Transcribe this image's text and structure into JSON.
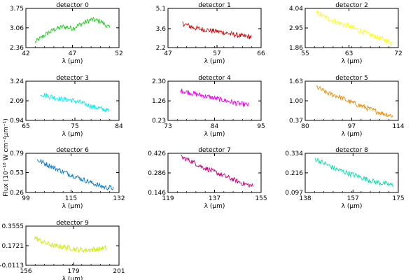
{
  "figure": {
    "ylabel": "Flux (10⁻¹⁸ W cm⁻²μm⁻¹)"
  },
  "chart_data": [
    {
      "type": "line",
      "title": "detector 0",
      "xlabel": "λ (μm)",
      "xlim": [
        42,
        52
      ],
      "ylim": [
        2.36,
        3.75
      ],
      "xticks": [
        "42",
        "47",
        "52"
      ],
      "yticks": [
        "2.36",
        "3.06",
        "3.75"
      ],
      "color": "#22cc22",
      "series": [
        {
          "x": [
            43,
            44,
            45,
            46,
            47,
            48,
            49,
            50,
            51
          ],
          "y": [
            2.55,
            2.8,
            3.0,
            3.1,
            3.05,
            3.2,
            3.35,
            3.3,
            3.05
          ]
        }
      ]
    },
    {
      "type": "line",
      "title": "detector 1",
      "xlabel": "λ (μm)",
      "xlim": [
        47,
        66
      ],
      "ylim": [
        2.2,
        5.1
      ],
      "xticks": [
        "47",
        "57",
        "66"
      ],
      "yticks": [
        "2.2",
        "3.6",
        "5.1"
      ],
      "color": "#dd0000",
      "series": [
        {
          "x": [
            50,
            52,
            54,
            56,
            58,
            60,
            62,
            64
          ],
          "y": [
            4.0,
            3.7,
            3.55,
            3.45,
            3.35,
            3.2,
            3.05,
            3.0
          ]
        }
      ]
    },
    {
      "type": "line",
      "title": "detector 2",
      "xlabel": "λ (μm)",
      "xlim": [
        55,
        72
      ],
      "ylim": [
        1.86,
        4.04
      ],
      "xticks": [
        "55",
        "63",
        "72"
      ],
      "yticks": [
        "1.86",
        "2.95",
        "4.04"
      ],
      "color": "#ffff00",
      "series": [
        {
          "x": [
            57,
            59,
            61,
            63,
            65,
            67,
            69,
            71
          ],
          "y": [
            3.8,
            3.5,
            3.25,
            3.05,
            2.8,
            2.55,
            2.35,
            2.1
          ]
        }
      ]
    },
    {
      "type": "line",
      "title": "detector 3",
      "xlabel": "λ (μm)",
      "xlim": [
        65,
        84
      ],
      "ylim": [
        0.94,
        3.24
      ],
      "xticks": [
        "65",
        "75",
        "84"
      ],
      "yticks": [
        "0.94",
        "2.09",
        "3.24"
      ],
      "color": "#00eeee",
      "series": [
        {
          "x": [
            68,
            70,
            72,
            74,
            76,
            78,
            80,
            82
          ],
          "y": [
            2.5,
            2.35,
            2.2,
            2.15,
            2.0,
            1.8,
            1.65,
            1.5
          ]
        }
      ]
    },
    {
      "type": "line",
      "title": "detector 4",
      "xlabel": "λ (μm)",
      "xlim": [
        73,
        95
      ],
      "ylim": [
        0.23,
        2.3
      ],
      "xticks": [
        "73",
        "84",
        "95"
      ],
      "yticks": [
        "0.23",
        "1.26",
        "2.30"
      ],
      "color": "#ee00ee",
      "series": [
        {
          "x": [
            76,
            78,
            80,
            82,
            84,
            86,
            88,
            90,
            92
          ],
          "y": [
            1.8,
            1.7,
            1.6,
            1.5,
            1.4,
            1.3,
            1.2,
            1.1,
            1.05
          ]
        }
      ]
    },
    {
      "type": "line",
      "title": "detector 5",
      "xlabel": "λ (μm)",
      "xlim": [
        80,
        114
      ],
      "ylim": [
        0.37,
        1.63
      ],
      "xticks": [
        "80",
        "97",
        "114"
      ],
      "yticks": [
        "0.37",
        "1.00",
        "1.63"
      ],
      "color": "#ee8800",
      "series": [
        {
          "x": [
            84,
            88,
            92,
            96,
            100,
            104,
            108,
            112
          ],
          "y": [
            1.45,
            1.25,
            1.15,
            0.98,
            0.85,
            0.72,
            0.6,
            0.52
          ]
        }
      ]
    },
    {
      "type": "line",
      "title": "detector 6",
      "xlabel": "λ (μm)",
      "xlim": [
        99,
        132
      ],
      "ylim": [
        0.26,
        0.79
      ],
      "xticks": [
        "99",
        "115",
        "132"
      ],
      "yticks": [
        "0.26",
        "0.53",
        "0.79"
      ],
      "color": "#0077cc",
      "series": [
        {
          "x": [
            103,
            107,
            111,
            115,
            119,
            123,
            127,
            130
          ],
          "y": [
            0.7,
            0.63,
            0.56,
            0.5,
            0.44,
            0.38,
            0.33,
            0.32
          ]
        }
      ]
    },
    {
      "type": "line",
      "title": "detector 7",
      "xlabel": "λ (μm)",
      "xlim": [
        119,
        155
      ],
      "ylim": [
        0.146,
        0.426
      ],
      "xticks": [
        "119",
        "137",
        "155"
      ],
      "yticks": [
        "0.146",
        "0.286",
        "0.426"
      ],
      "color": "#cc0077",
      "series": [
        {
          "x": [
            124,
            128,
            132,
            136,
            140,
            144,
            148,
            152
          ],
          "y": [
            0.4,
            0.37,
            0.33,
            0.3,
            0.27,
            0.24,
            0.21,
            0.19
          ]
        }
      ]
    },
    {
      "type": "line",
      "title": "detector 8",
      "xlabel": "λ (μm)",
      "xlim": [
        138,
        175
      ],
      "ylim": [
        0.097,
        0.334
      ],
      "xticks": [
        "138",
        "157",
        "175"
      ],
      "yticks": [
        "0.097",
        "0.216",
        "0.334"
      ],
      "color": "#00ddaa",
      "series": [
        {
          "x": [
            142,
            146,
            150,
            154,
            158,
            162,
            166,
            170,
            173
          ],
          "y": [
            0.3,
            0.27,
            0.24,
            0.22,
            0.2,
            0.18,
            0.16,
            0.15,
            0.14
          ]
        }
      ]
    },
    {
      "type": "line",
      "title": "detector 9",
      "xlabel": "λ (μm)",
      "xlim": [
        156,
        201
      ],
      "ylim": [
        -0.0113,
        0.3555
      ],
      "xticks": [
        "156",
        "179",
        "201"
      ],
      "yticks": [
        "-0.0113",
        "0.1721",
        "0.3555"
      ],
      "color": "#ccee00",
      "series": [
        {
          "x": [
            160,
            165,
            170,
            175,
            180,
            185,
            190,
            195
          ],
          "y": [
            0.25,
            0.2,
            0.17,
            0.16,
            0.14,
            0.13,
            0.14,
            0.15
          ]
        }
      ]
    }
  ]
}
